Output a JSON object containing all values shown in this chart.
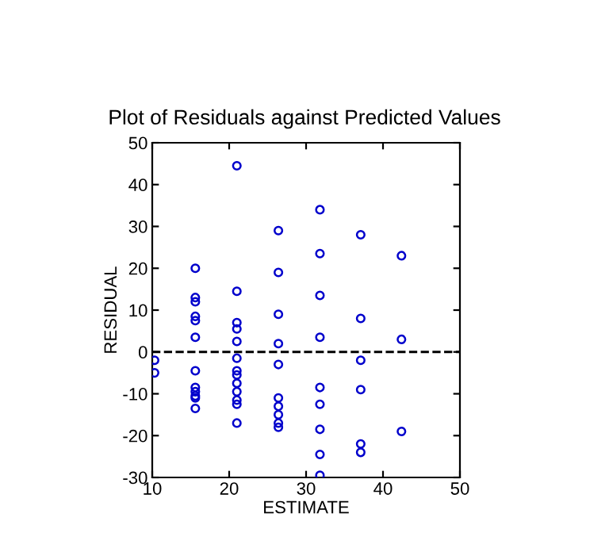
{
  "chart_data": {
    "type": "scatter",
    "title": "Plot of Residuals against Predicted Values",
    "xlabel": "ESTIMATE",
    "ylabel": "RESIDUAL",
    "x": [
      10.3,
      10.3,
      15.6,
      15.6,
      15.6,
      15.6,
      15.6,
      15.6,
      15.6,
      15.6,
      15.6,
      15.6,
      15.6,
      15.6,
      21,
      21,
      21,
      21,
      21,
      21,
      21,
      21,
      21,
      21,
      21,
      21,
      21,
      26.4,
      26.4,
      26.4,
      26.4,
      26.4,
      26.4,
      26.4,
      26.4,
      26.4,
      26.4,
      31.8,
      31.8,
      31.8,
      31.8,
      31.8,
      31.8,
      31.8,
      31.8,
      31.8,
      37.1,
      37.1,
      37.1,
      37.1,
      37.1,
      37.1,
      42.4,
      42.4,
      42.4
    ],
    "series": [
      {
        "color": "#0000cc",
        "values": [
          -2,
          -5,
          20,
          13,
          12,
          8.5,
          7.5,
          3.5,
          -4.5,
          -8.5,
          -9.5,
          -10.5,
          -11,
          -13.5,
          44.5,
          14.5,
          7,
          5.5,
          2.5,
          -1.5,
          -4.5,
          -5.5,
          -7.5,
          -9.5,
          -11.5,
          -12.5,
          -17,
          29,
          19,
          9,
          2,
          -3,
          -11,
          -13,
          -15,
          -17,
          -18,
          34,
          23.5,
          13.5,
          3.5,
          -8.5,
          -12.5,
          -18.5,
          -24.5,
          -29.5,
          28,
          8,
          -2,
          -9,
          -22,
          -24,
          23,
          3,
          -19
        ]
      }
    ],
    "xlim": [
      10,
      50
    ],
    "xticks": [
      10,
      20,
      30,
      40,
      50
    ],
    "ylim": [
      -30,
      50
    ],
    "yticks": [
      -30,
      -20,
      -10,
      0,
      10,
      20,
      30,
      40,
      50
    ],
    "ref_lines": [
      {
        "axis": "y",
        "value": 0,
        "color": "#000000",
        "line_style": "dashed"
      }
    ],
    "marker": "circle",
    "grid": false,
    "legend": false
  }
}
